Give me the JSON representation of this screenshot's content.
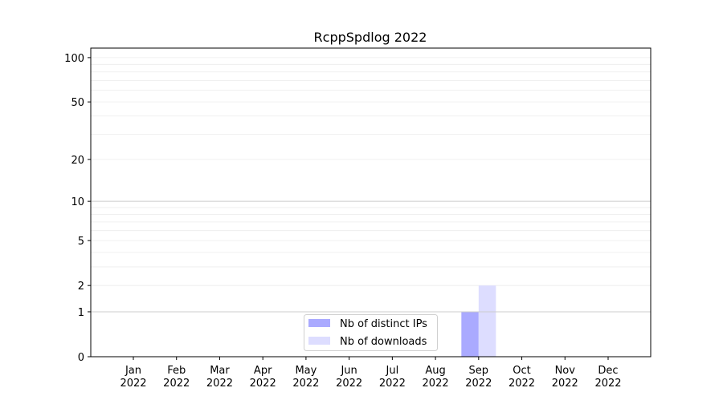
{
  "chart_data": {
    "type": "bar",
    "title": "RcppSpdlog 2022",
    "xlabel": "",
    "ylabel": "",
    "yscale": "log(1+y)",
    "ylim": [
      0,
      116
    ],
    "yticks": [
      0,
      1,
      2,
      5,
      10,
      20,
      50,
      100
    ],
    "grid": true,
    "legend_position": "bottom-center",
    "categories": [
      "Jan\n2022",
      "Feb\n2022",
      "Mar\n2022",
      "Apr\n2022",
      "May\n2022",
      "Jun\n2022",
      "Jul\n2022",
      "Aug\n2022",
      "Sep\n2022",
      "Oct\n2022",
      "Nov\n2022",
      "Dec\n2022"
    ],
    "series": [
      {
        "name": "Nb of distinct IPs",
        "color": "#aaaaff",
        "values": [
          0,
          0,
          0,
          0,
          0,
          0,
          0,
          0,
          1,
          0,
          0,
          0
        ]
      },
      {
        "name": "Nb of downloads",
        "color": "#ddddff",
        "values": [
          0,
          0,
          0,
          0,
          0,
          0,
          0,
          0,
          2,
          0,
          0,
          0
        ]
      }
    ]
  }
}
